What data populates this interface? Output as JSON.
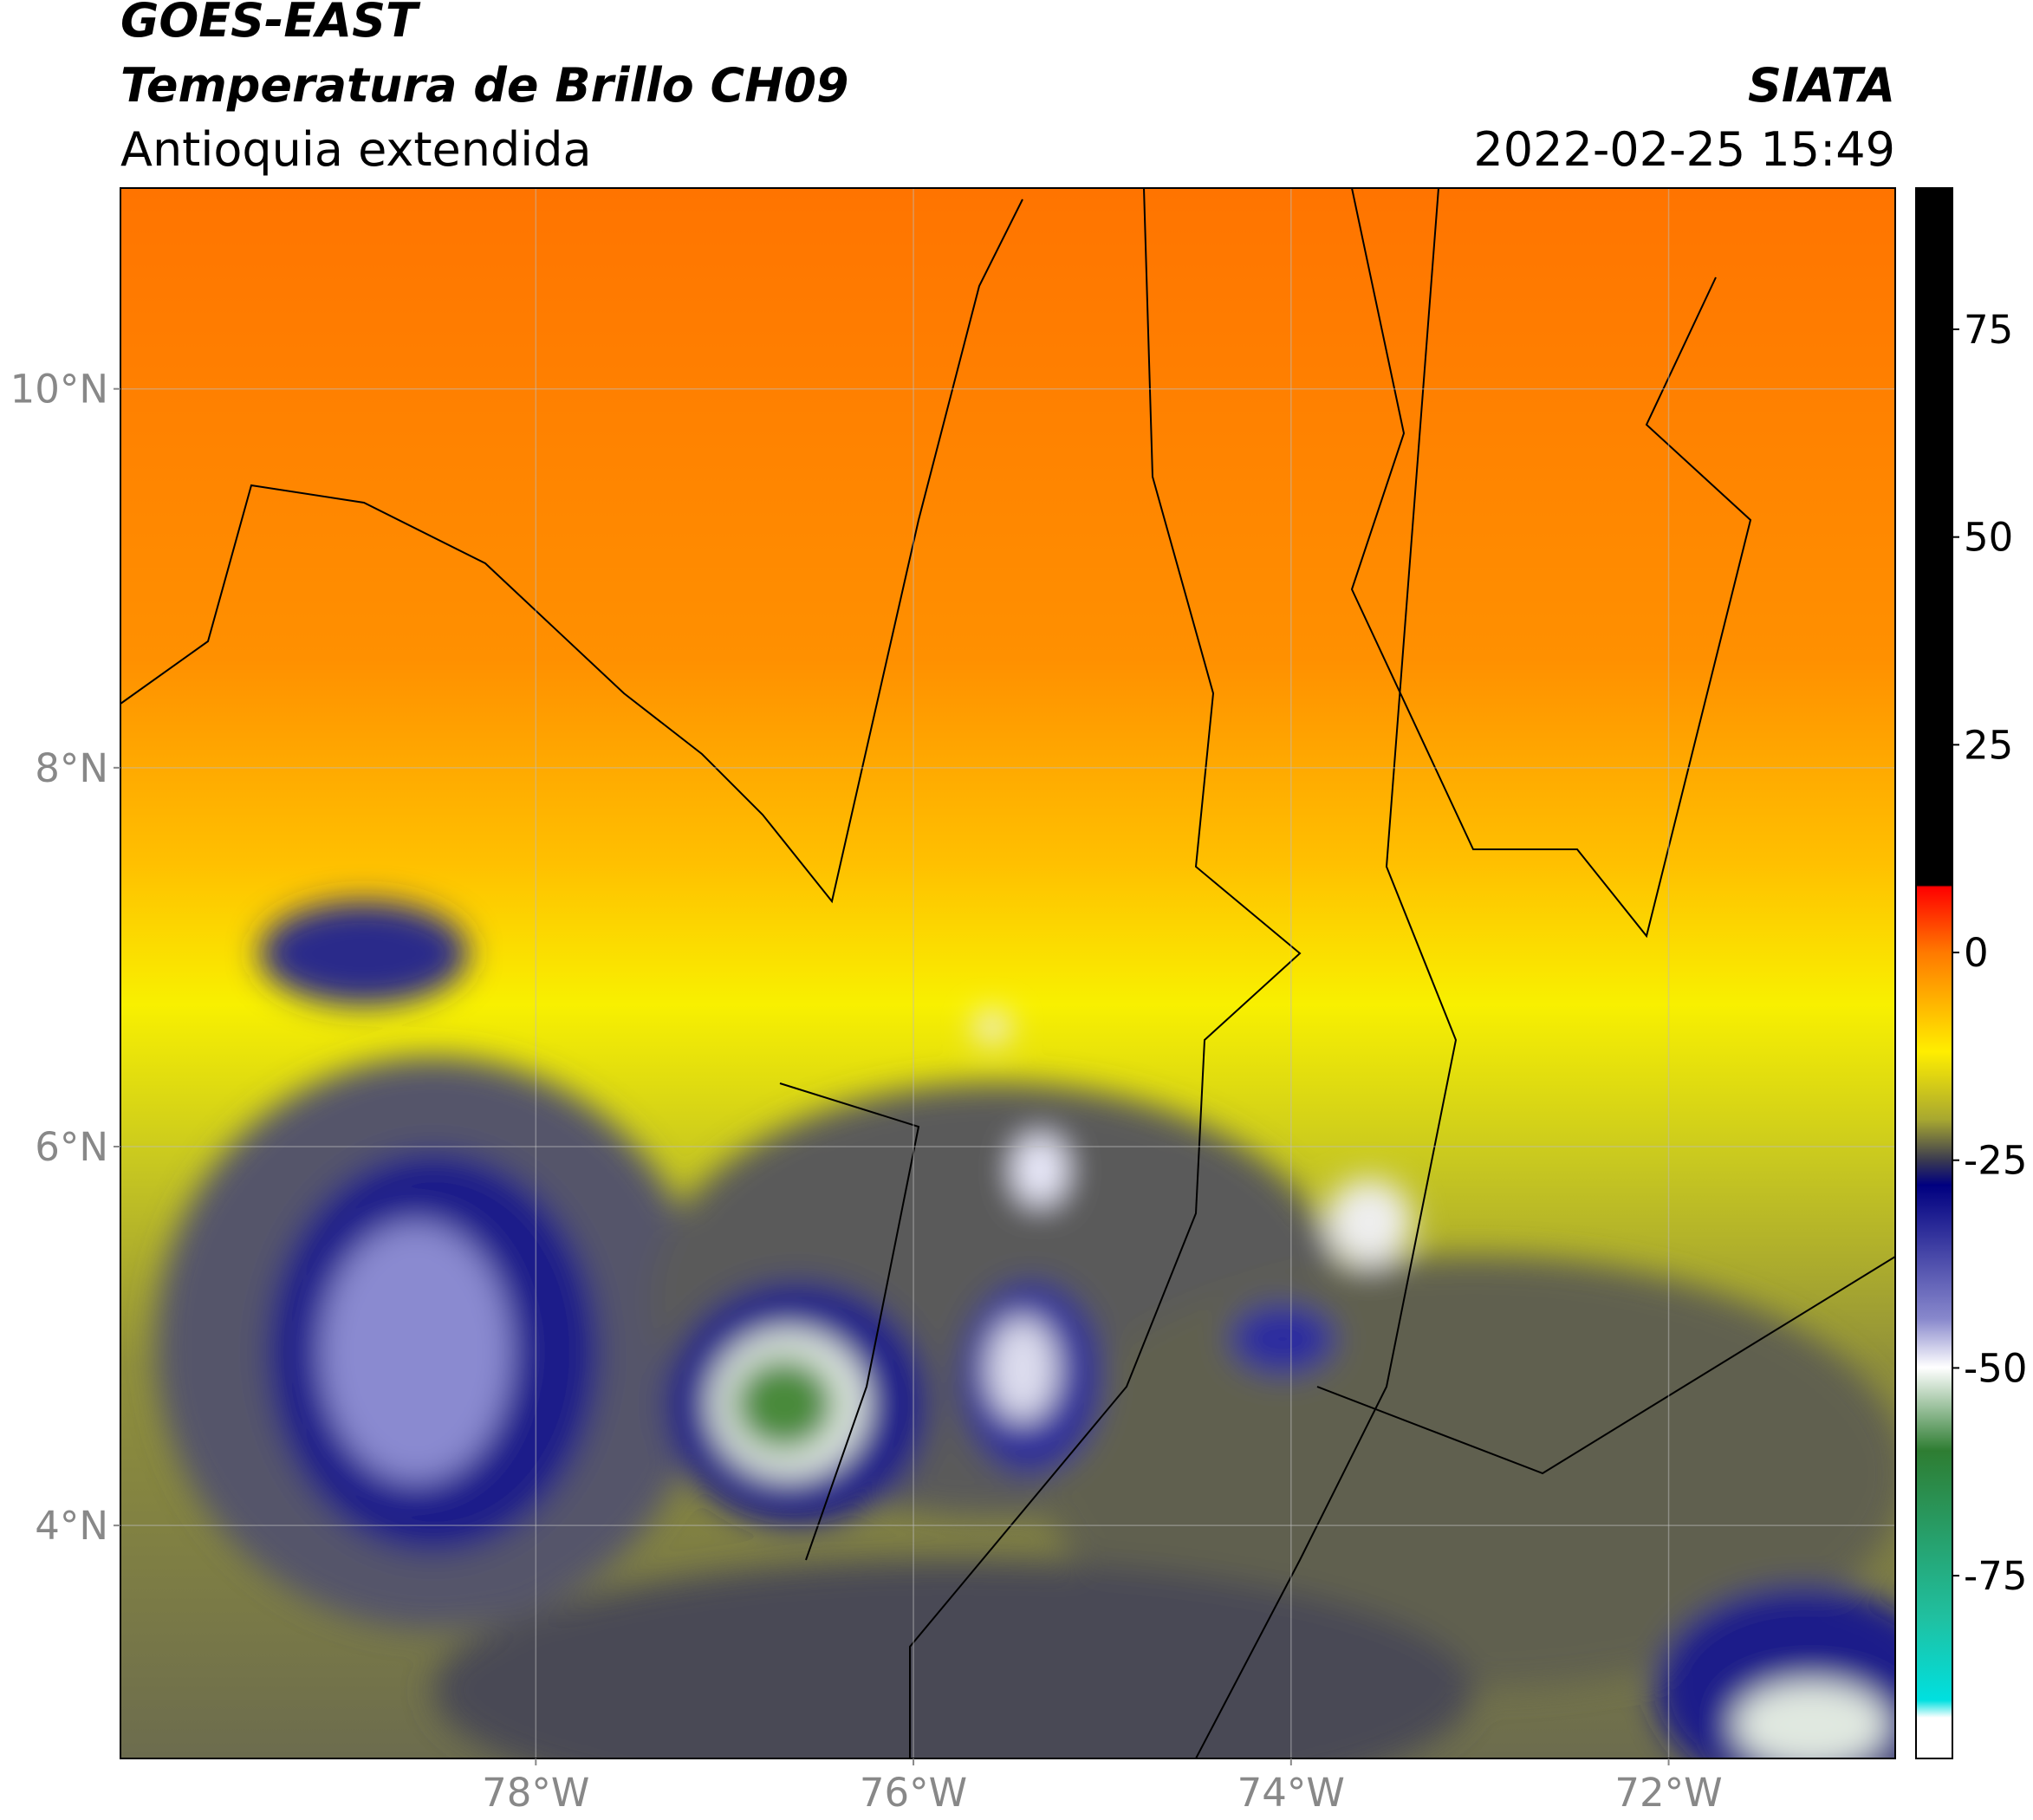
{
  "header": {
    "line1": "GOES-EAST",
    "line2": "Temperatura de Brillo CH09",
    "line3": "Antioquia extendida",
    "agency": "SIATA",
    "datetime": "2022-02-25 15:49"
  },
  "map": {
    "lonlim": [
      -80.2,
      -70.8
    ],
    "latlim": [
      2.77,
      11.06
    ],
    "lonticks": [
      {
        "value": -78,
        "label": "78°W"
      },
      {
        "value": -76,
        "label": "76°W"
      },
      {
        "value": -74,
        "label": "74°W"
      },
      {
        "value": -72,
        "label": "72°W"
      }
    ],
    "latticks": [
      {
        "value": 4,
        "label": "4°N"
      },
      {
        "value": 6,
        "label": "6°N"
      },
      {
        "value": 8,
        "label": "8°N"
      },
      {
        "value": 10,
        "label": "10°N"
      }
    ],
    "grid": true
  },
  "colorbar": {
    "lim": [
      -97,
      92
    ],
    "ticks": [
      75,
      50,
      25,
      0,
      -25,
      -50,
      -75
    ]
  }
}
